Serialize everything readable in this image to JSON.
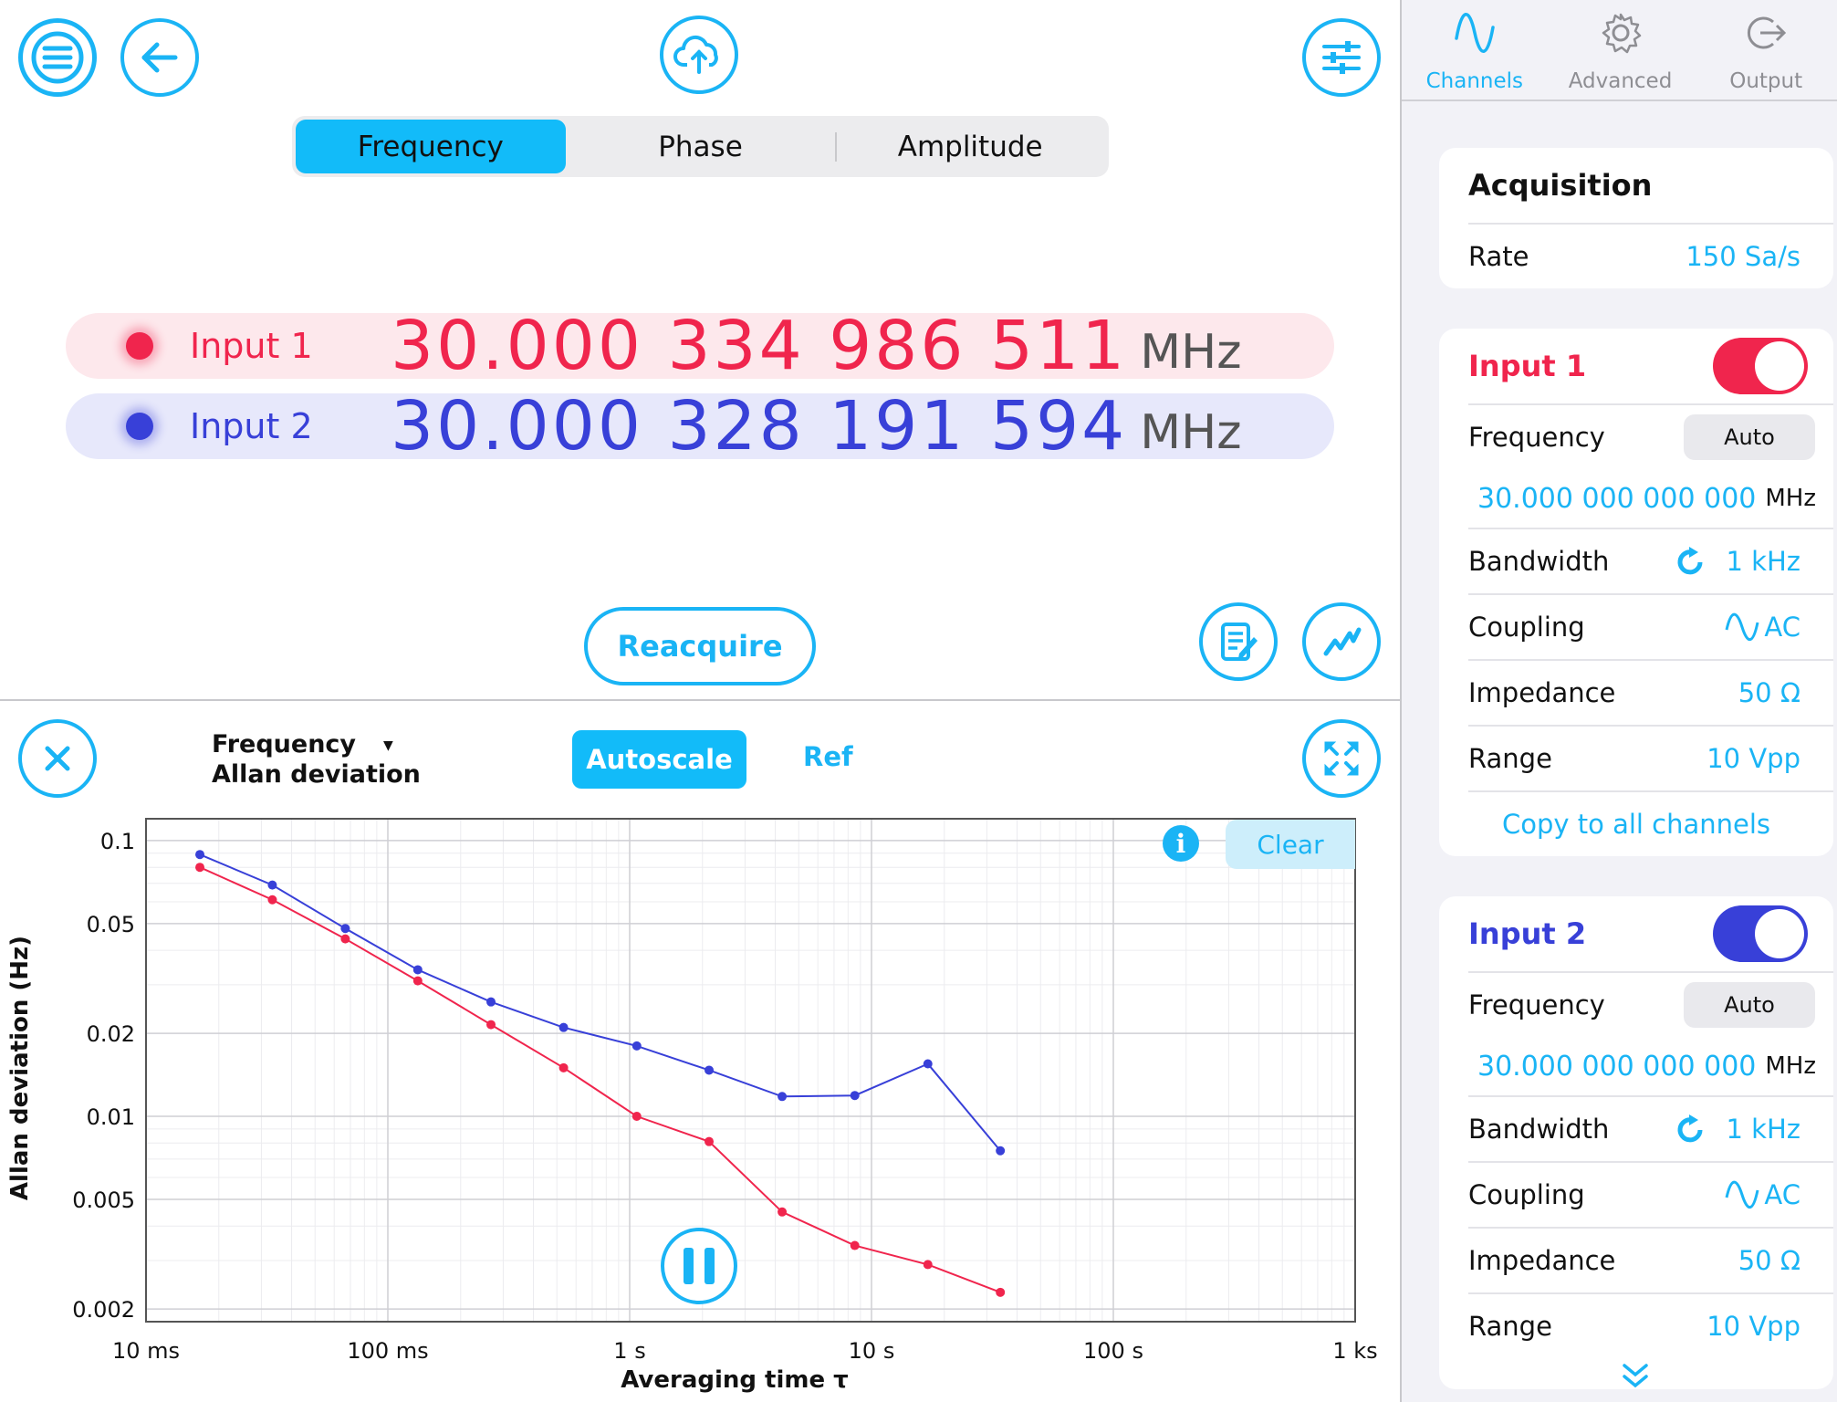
{
  "toolbar": {
    "menu_icon": "hamburger-menu-icon",
    "back_icon": "arrow-left-icon",
    "upload_icon": "cloud-upload-icon",
    "settings_icon": "sliders-icon"
  },
  "measurement_tabs": [
    {
      "label": "Frequency",
      "active": true
    },
    {
      "label": "Phase",
      "active": false
    },
    {
      "label": "Amplitude",
      "active": false
    }
  ],
  "readings": [
    {
      "label": "Input 1",
      "value": "30.000 334 986 511",
      "unit": "MHz",
      "color": "#f0254d",
      "bg": "#fde8ec"
    },
    {
      "label": "Input 2",
      "value": "30.000 328 191 594",
      "unit": "MHz",
      "color": "#3840d8",
      "bg": "#e7e8fb"
    }
  ],
  "reacquire_label": "Reacquire",
  "plot_controls": {
    "selector_line1": "Frequency",
    "selector_line2": "Allan deviation",
    "autoscale_label": "Autoscale",
    "ref_label": "Ref",
    "clear_label": "Clear",
    "info_glyph": "i"
  },
  "chart_data": {
    "type": "line",
    "title": "",
    "xlabel": "Averaging time τ",
    "ylabel": "Allan deviation (Hz)",
    "xscale": "log",
    "yscale": "log",
    "xlim": [
      0.01,
      1000
    ],
    "ylim": [
      0.0018,
      0.12
    ],
    "x_tick_labels": [
      "10 ms",
      "100 ms",
      "1 s",
      "10 s",
      "100 s",
      "1 ks"
    ],
    "x_tick_values": [
      0.01,
      0.1,
      1,
      10,
      100,
      1000
    ],
    "y_tick_labels": [
      "0.1",
      "0.05",
      "0.02",
      "0.01",
      "0.005",
      "0.002"
    ],
    "y_tick_values": [
      0.1,
      0.05,
      0.02,
      0.01,
      0.005,
      0.002
    ],
    "x": [
      0.0167,
      0.0333,
      0.0667,
      0.133,
      0.267,
      0.533,
      1.07,
      2.13,
      4.27,
      8.53,
      17.1,
      34.1
    ],
    "series": [
      {
        "name": "Input 1",
        "color": "#f0254d",
        "values": [
          0.08,
          0.061,
          0.044,
          0.031,
          0.0215,
          0.015,
          0.01,
          0.0081,
          0.0045,
          0.0034,
          0.0029,
          0.0023
        ]
      },
      {
        "name": "Input 2",
        "color": "#3840d8",
        "values": [
          0.089,
          0.069,
          0.048,
          0.034,
          0.026,
          0.021,
          0.018,
          0.0147,
          0.0118,
          0.0119,
          0.0155,
          0.0075
        ]
      }
    ],
    "grid": true
  },
  "sidebar": {
    "tabs": [
      {
        "label": "Channels",
        "icon": "sine-wave-icon",
        "active": true
      },
      {
        "label": "Advanced",
        "icon": "gear-icon",
        "active": false
      },
      {
        "label": "Output",
        "icon": "output-arrow-icon",
        "active": false
      }
    ],
    "acquisition": {
      "title": "Acquisition",
      "rate_label": "Rate",
      "rate_value": "150 Sa/s"
    },
    "input1": {
      "title": "Input 1",
      "enabled": true,
      "color": "#f0254d",
      "frequency_label": "Frequency",
      "frequency_mode": "Auto",
      "frequency_value": "30.000 000 000 000",
      "frequency_unit": "MHz",
      "bandwidth_label": "Bandwidth",
      "bandwidth_value": "1 kHz",
      "coupling_label": "Coupling",
      "coupling_value": "AC",
      "impedance_label": "Impedance",
      "impedance_value": "50 Ω",
      "range_label": "Range",
      "range_value": "10 Vpp",
      "copy_label": "Copy to all channels"
    },
    "input2": {
      "title": "Input 2",
      "enabled": true,
      "color": "#3840d8",
      "frequency_label": "Frequency",
      "frequency_mode": "Auto",
      "frequency_value": "30.000 000 000 000",
      "frequency_unit": "MHz",
      "bandwidth_label": "Bandwidth",
      "bandwidth_value": "1 kHz",
      "coupling_label": "Coupling",
      "coupling_value": "AC",
      "impedance_label": "Impedance",
      "impedance_value": "50 Ω",
      "range_label": "Range",
      "range_value": "10 Vpp"
    }
  },
  "colors": {
    "accent": "#1ab4f5",
    "input1": "#f0254d",
    "input2": "#3840d8"
  }
}
